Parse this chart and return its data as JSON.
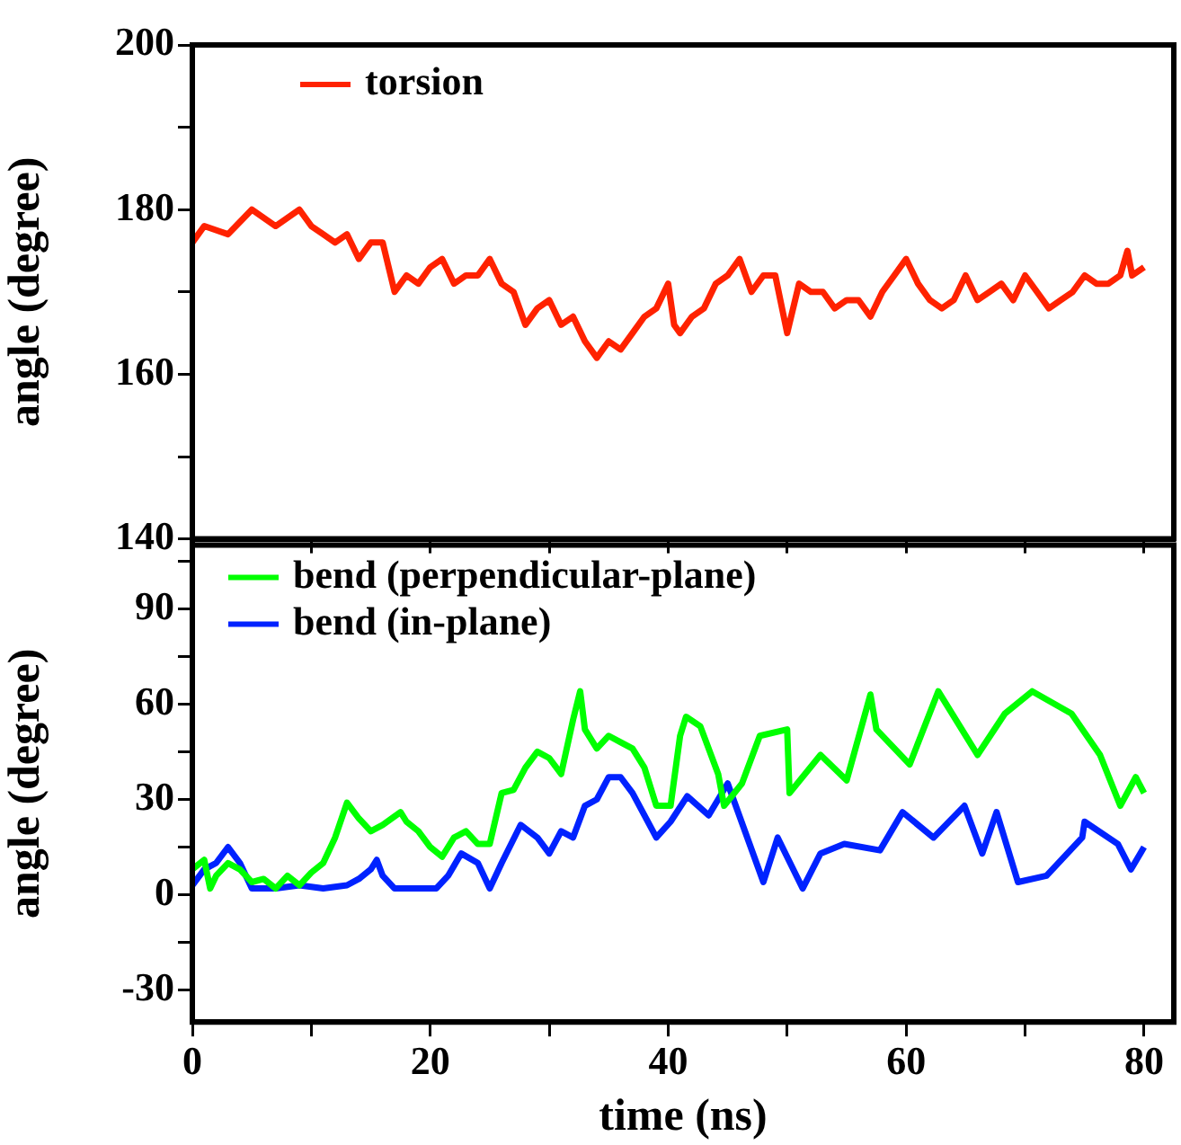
{
  "chart_data": [
    {
      "type": "line",
      "ylabel": "angle (degree)",
      "legend": "top left",
      "tick_labels": "y",
      "xlim": [
        0,
        82.5
      ],
      "xticks": [
        0,
        {
          "value": 10,
          "label": null
        },
        20,
        {
          "value": 30,
          "label": null
        },
        40,
        {
          "value": 50,
          "label": null
        },
        60,
        {
          "value": 70,
          "label": null
        },
        80
      ],
      "ylim": [
        140,
        200
      ],
      "yticks": [
        140,
        {
          "value": 150,
          "label": null
        },
        160,
        {
          "value": 170,
          "label": null
        },
        180,
        {
          "value": 190,
          "label": null
        },
        200
      ],
      "grid": false,
      "marker": "none",
      "line_style": "solid",
      "series": [
        {
          "name": "torsion",
          "color": "#ff2200",
          "x": [
            0,
            1,
            3,
            5,
            7,
            8,
            9,
            10,
            11,
            12,
            13,
            14,
            15,
            16,
            17,
            18,
            19,
            20,
            21,
            22,
            23,
            24,
            25,
            26,
            27,
            28,
            29,
            30,
            31,
            32,
            33,
            34,
            35,
            36,
            37,
            38,
            39,
            40,
            40.5,
            41,
            42,
            43,
            44,
            45,
            46,
            47,
            48,
            49,
            50,
            51,
            52,
            53,
            54,
            55,
            56,
            57,
            58,
            59,
            60,
            61,
            62,
            63,
            64,
            65,
            66,
            67,
            68,
            69,
            70,
            71,
            72,
            73,
            74,
            75,
            76,
            77,
            78,
            78.6,
            79,
            80
          ],
          "values": [
            176,
            178,
            177,
            180,
            178,
            179,
            180,
            178,
            177,
            176,
            177,
            174,
            176,
            176,
            170,
            172,
            171,
            173,
            174,
            171,
            172,
            172,
            174,
            171,
            170,
            166,
            168,
            169,
            166,
            167,
            164,
            162,
            164,
            163,
            165,
            167,
            168,
            171,
            166,
            165,
            167,
            168,
            171,
            172,
            174,
            170,
            172,
            172,
            165,
            171,
            170,
            170,
            168,
            169,
            169,
            167,
            170,
            172,
            174,
            171,
            169,
            168,
            169,
            172,
            169,
            170,
            171,
            169,
            172,
            170,
            168,
            169,
            170,
            172,
            171,
            171,
            172,
            175,
            172,
            173
          ]
        }
      ]
    },
    {
      "type": "line",
      "xlabel": "time (ns)",
      "ylabel": "angle (degree)",
      "legend": "top left",
      "xlim": [
        0,
        82.5
      ],
      "xticks": [
        0,
        {
          "value": 10,
          "label": null
        },
        20,
        {
          "value": 30,
          "label": null
        },
        40,
        {
          "value": 50,
          "label": null
        },
        60,
        {
          "value": 70,
          "label": null
        },
        80
      ],
      "ylim": [
        -40,
        110
      ],
      "yticks": [
        -30,
        {
          "value": -15,
          "label": null
        },
        0,
        {
          "value": 15,
          "label": null
        },
        30,
        {
          "value": 45,
          "label": null
        },
        60,
        {
          "value": 75,
          "label": null
        },
        90,
        {
          "value": 105,
          "label": null
        }
      ],
      "grid": false,
      "marker": "none",
      "line_style": "solid",
      "series": [
        {
          "name": "bend (perpendicular-plane)",
          "color": "#00ff00",
          "x": [
            0,
            1,
            1.5,
            2,
            3,
            4,
            5,
            6,
            7,
            8,
            9,
            10,
            11,
            12,
            13,
            14,
            15,
            16,
            17.5,
            18,
            19,
            20,
            21,
            22,
            23,
            24,
            25,
            26,
            27,
            28,
            29,
            30,
            31,
            32,
            32.6,
            33,
            34,
            35,
            36,
            37,
            38,
            39,
            40.2,
            41,
            41.5,
            42.7,
            44.2,
            44.7,
            46.2,
            47.7,
            50,
            50.2,
            52.8,
            55,
            57,
            57.5,
            60.3,
            62.7,
            66,
            68.3,
            70.6,
            73.9,
            76.3,
            78,
            79.3,
            80
          ],
          "values": [
            8,
            11,
            2,
            6,
            10,
            8,
            4,
            5,
            2,
            6,
            3,
            7,
            10,
            18,
            29,
            24,
            20,
            22,
            26,
            23,
            20,
            15,
            12,
            18,
            20,
            16,
            16,
            32,
            33,
            40,
            45,
            43,
            38,
            55,
            64,
            52,
            46,
            50,
            48,
            46,
            40,
            28,
            28,
            50,
            56,
            53,
            38,
            28,
            35,
            50,
            52,
            32,
            44,
            36,
            63,
            52,
            41,
            64,
            44,
            57,
            64,
            57,
            44,
            28,
            37,
            32
          ]
        },
        {
          "name": "bend (in-plane)",
          "color": "#0022ff",
          "x": [
            0,
            1,
            2,
            3,
            4,
            5,
            7,
            9,
            11,
            13,
            14,
            15,
            15.5,
            16,
            17,
            19,
            20.5,
            21.5,
            22.6,
            24,
            25,
            26,
            27.6,
            29,
            30,
            31,
            32,
            33,
            34,
            35,
            36,
            37,
            38,
            39,
            40.2,
            41.6,
            43.4,
            45,
            48,
            49.2,
            51.3,
            52.8,
            54.8,
            57.8,
            59.7,
            62.3,
            64.9,
            66.4,
            67.6,
            69.4,
            71.8,
            74.8,
            75,
            77.8,
            78.9,
            80
          ],
          "values": [
            3,
            8,
            10,
            15,
            10,
            2,
            2,
            3,
            2,
            3,
            5,
            8,
            11,
            6,
            2,
            2,
            2,
            6,
            13,
            10,
            2,
            10,
            22,
            18,
            13,
            20,
            18,
            28,
            30,
            37,
            37,
            32,
            25,
            18,
            23,
            31,
            25,
            35,
            4,
            18,
            2,
            13,
            16,
            14,
            26,
            18,
            28,
            13,
            26,
            4,
            6,
            18,
            23,
            16,
            8,
            15
          ]
        }
      ]
    }
  ]
}
